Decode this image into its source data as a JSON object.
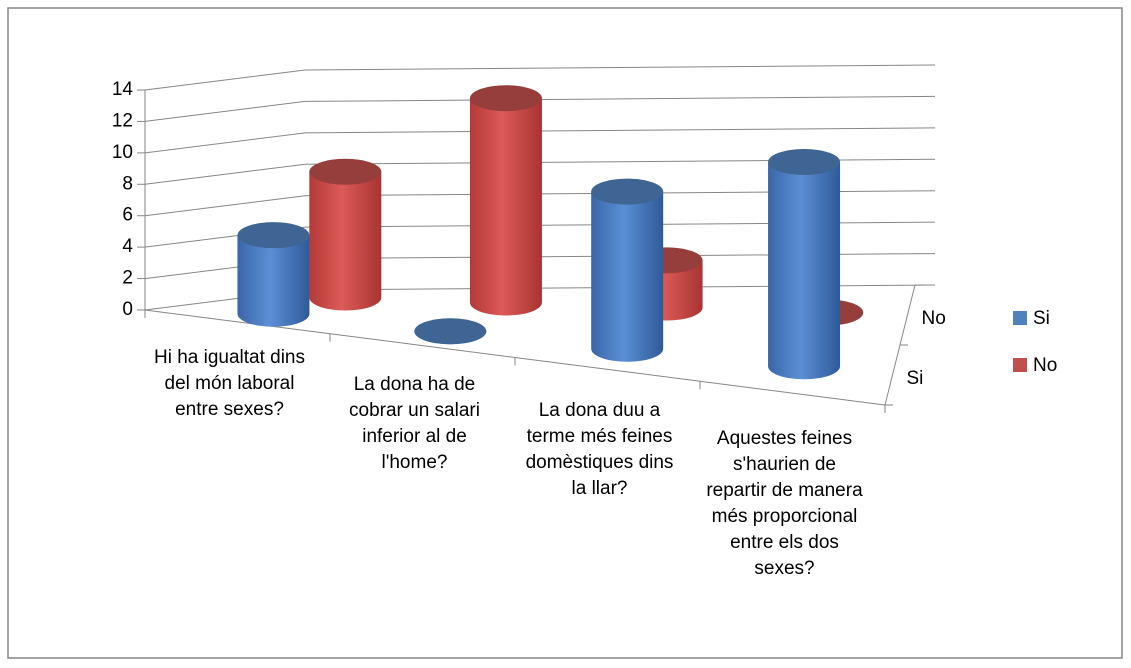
{
  "chart_data": {
    "type": "bar3d",
    "categories": [
      "Hi ha igualtat dins del món laboral entre sexes?",
      "La dona ha de cobrar un salari inferior al de l'home?",
      "La dona duu a terme més feines domèstiques dins la llar?",
      "Aquestes feines s'haurien de repartir de manera més proporcional entre els dos sexes?"
    ],
    "series": [
      {
        "name": "Si",
        "color": "#4f81bd",
        "values": [
          5,
          0,
          10,
          13
        ]
      },
      {
        "name": "No",
        "color": "#c0504d",
        "values": [
          8,
          13,
          3,
          0
        ]
      }
    ],
    "ylim": [
      0,
      14
    ],
    "yticks": [
      0,
      2,
      4,
      6,
      8,
      10,
      12,
      14
    ],
    "grid": true,
    "legend": "right"
  }
}
